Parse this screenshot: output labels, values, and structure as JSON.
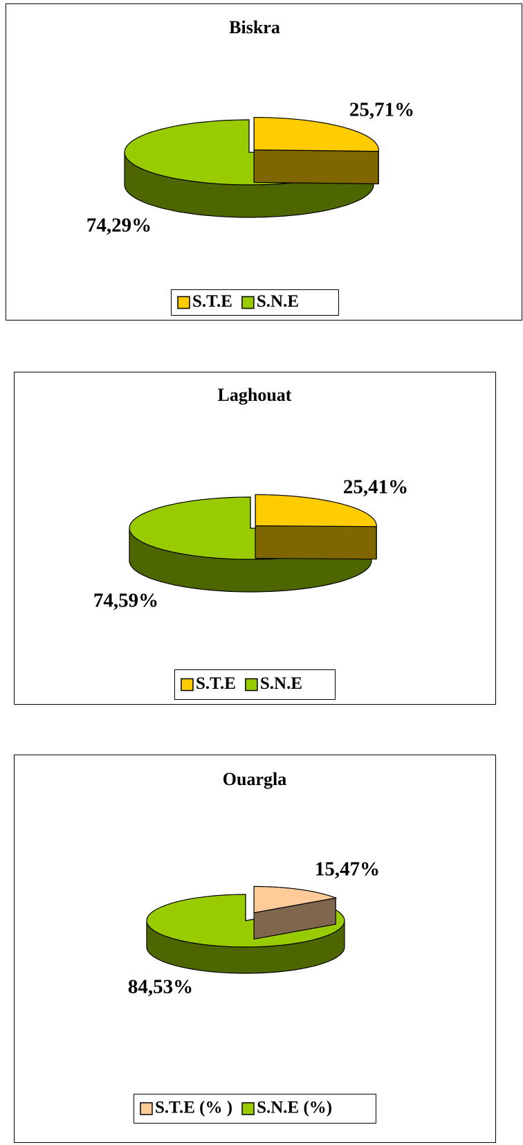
{
  "chart_data": [
    {
      "type": "pie",
      "title": "Biskra",
      "categories": [
        "S.T.E",
        "S.N.E"
      ],
      "values": [
        25.71,
        74.29
      ],
      "value_labels": [
        "25,71%",
        "74,29%"
      ],
      "colors": [
        "#ffcc00",
        "#99cc00"
      ],
      "legend": "bottom"
    },
    {
      "type": "pie",
      "title": "Laghouat",
      "categories": [
        "S.T.E",
        "S.N.E"
      ],
      "values": [
        25.41,
        74.59
      ],
      "value_labels": [
        "25,41%",
        "74,59%"
      ],
      "colors": [
        "#ffcc00",
        "#99cc00"
      ],
      "legend": "bottom"
    },
    {
      "type": "pie",
      "title": "Ouargla",
      "categories": [
        "S.T.E (% )",
        "S.N.E (%)"
      ],
      "values": [
        15.47,
        84.53
      ],
      "value_labels": [
        "15,47%",
        "84,53%"
      ],
      "colors": [
        "#ffcc99",
        "#99cc00"
      ],
      "legend": "bottom"
    }
  ]
}
